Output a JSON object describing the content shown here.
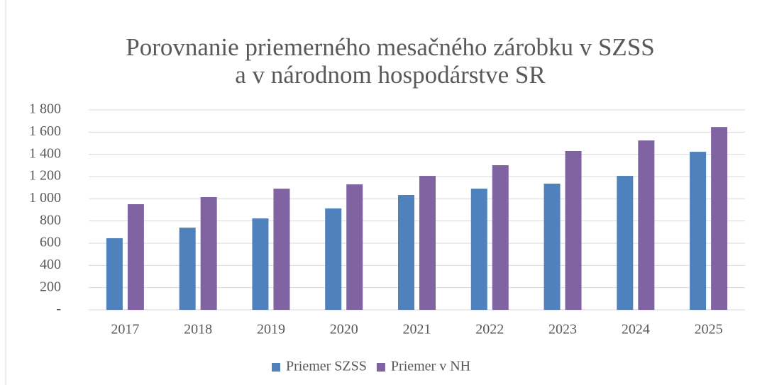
{
  "chart_data": {
    "type": "bar",
    "title": "Porovnanie priemerného mesačného zárobku v SZSS",
    "subtitle": "a v národnom hospodárstve SR",
    "categories": [
      "2017",
      "2018",
      "2019",
      "2020",
      "2021",
      "2022",
      "2023",
      "2024",
      "2025"
    ],
    "series": [
      {
        "name": "Priemer SZSS",
        "color": "#4f81bd",
        "values": [
          645,
          740,
          823,
          913,
          1034,
          1091,
          1136,
          1206,
          1423
        ]
      },
      {
        "name": "Priemer v NH",
        "color": "#8064a2",
        "values": [
          951,
          1015,
          1091,
          1130,
          1206,
          1302,
          1430,
          1525,
          1646
        ]
      }
    ],
    "ylim": [
      0,
      1800
    ],
    "yticks": [
      {
        "value": 0,
        "label": "-"
      },
      200,
      400,
      600,
      800,
      {
        "value": 1000,
        "label": "1 000"
      },
      {
        "value": 1200,
        "label": "1 200"
      },
      {
        "value": 1400,
        "label": "1 400"
      },
      {
        "value": 1600,
        "label": "1 600"
      },
      {
        "value": 1800,
        "label": "1 800"
      }
    ],
    "grid": true,
    "legend": "bottom"
  }
}
